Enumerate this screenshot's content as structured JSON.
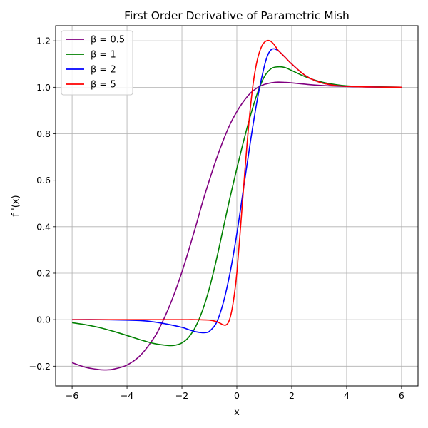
{
  "chart_data": {
    "type": "line",
    "title": "First Order Derivative of Parametric Mish",
    "xlabel": "x",
    "ylabel": "f '(x)",
    "xlim": [
      -6.6,
      6.6
    ],
    "ylim": [
      -0.285,
      1.265
    ],
    "xticks": [
      -6,
      -4,
      -2,
      0,
      2,
      4,
      6
    ],
    "yticks": [
      -0.2,
      0.0,
      0.2,
      0.4,
      0.6,
      0.8,
      1.0,
      1.2
    ],
    "xtick_labels": [
      "−6",
      "−4",
      "−2",
      "0",
      "2",
      "4",
      "6"
    ],
    "ytick_labels": [
      "−0.2",
      "0.0",
      "0.2",
      "0.4",
      "0.6",
      "0.8",
      "1.0",
      "1.2"
    ],
    "grid": true,
    "legend_position": "top-left",
    "series": [
      {
        "name": "β = 0.5",
        "color": "#800080",
        "x": [
          -6,
          -5.5,
          -5,
          -4.75,
          -4.5,
          -4,
          -3.5,
          -3,
          -2.75,
          -2.5,
          -2.25,
          -2,
          -1.75,
          -1.5,
          -1.25,
          -1,
          -0.75,
          -0.5,
          -0.25,
          0,
          0.25,
          0.5,
          0.75,
          1,
          1.25,
          1.5,
          1.75,
          2,
          2.5,
          3,
          4,
          5,
          6
        ],
        "y": [
          -0.185,
          -0.205,
          -0.215,
          -0.216,
          -0.213,
          -0.195,
          -0.152,
          -0.075,
          -0.02,
          0.045,
          0.12,
          0.205,
          0.3,
          0.4,
          0.505,
          0.6,
          0.69,
          0.77,
          0.84,
          0.895,
          0.94,
          0.975,
          0.998,
          1.012,
          1.019,
          1.022,
          1.021,
          1.019,
          1.013,
          1.008,
          1.003,
          1.001,
          1.0
        ]
      },
      {
        "name": "β = 1",
        "color": "#008000",
        "x": [
          -6,
          -5.5,
          -5,
          -4.5,
          -4,
          -3.5,
          -3,
          -2.5,
          -2.25,
          -2,
          -1.75,
          -1.5,
          -1.25,
          -1,
          -0.75,
          -0.5,
          -0.25,
          0,
          0.25,
          0.5,
          0.75,
          1,
          1.25,
          1.5,
          1.75,
          2,
          2.5,
          3,
          3.5,
          4,
          5,
          6
        ],
        "y": [
          -0.013,
          -0.022,
          -0.034,
          -0.05,
          -0.068,
          -0.087,
          -0.103,
          -0.111,
          -0.11,
          -0.1,
          -0.075,
          -0.03,
          0.04,
          0.135,
          0.255,
          0.39,
          0.525,
          0.65,
          0.77,
          0.88,
          0.975,
          1.045,
          1.08,
          1.088,
          1.085,
          1.072,
          1.045,
          1.025,
          1.013,
          1.006,
          1.002,
          1.0
        ]
      },
      {
        "name": "β = 2",
        "color": "#0000ff",
        "x": [
          -6,
          -5,
          -4,
          -3.5,
          -3,
          -2.5,
          -2,
          -1.75,
          -1.5,
          -1.25,
          -1.1,
          -1,
          -0.75,
          -0.5,
          -0.25,
          0,
          0.25,
          0.5,
          0.75,
          1,
          1.15,
          1.3,
          1.5,
          1.75,
          2,
          2.5,
          3,
          3.5,
          4,
          5,
          6
        ],
        "y": [
          0.0,
          0.0,
          -0.002,
          -0.004,
          -0.01,
          -0.02,
          -0.033,
          -0.043,
          -0.052,
          -0.056,
          -0.055,
          -0.05,
          -0.015,
          0.07,
          0.2,
          0.37,
          0.57,
          0.77,
          0.95,
          1.09,
          1.145,
          1.165,
          1.158,
          1.13,
          1.1,
          1.05,
          1.022,
          1.009,
          1.004,
          1.001,
          1.0
        ]
      },
      {
        "name": "β = 5",
        "color": "#ff0000",
        "x": [
          -6,
          -4,
          -3,
          -2,
          -1.5,
          -1,
          -0.75,
          -0.6,
          -0.5,
          -0.4,
          -0.3,
          -0.2,
          -0.1,
          0,
          0.15,
          0.3,
          0.45,
          0.6,
          0.75,
          0.9,
          1.05,
          1.2,
          1.35,
          1.5,
          1.75,
          2,
          2.5,
          3,
          3.5,
          4,
          5,
          6
        ],
        "y": [
          0.0,
          0.0,
          0.0,
          0.0,
          0.0,
          -0.002,
          -0.008,
          -0.016,
          -0.022,
          -0.023,
          -0.01,
          0.03,
          0.1,
          0.2,
          0.42,
          0.65,
          0.86,
          1.02,
          1.12,
          1.175,
          1.198,
          1.2,
          1.185,
          1.16,
          1.13,
          1.1,
          1.05,
          1.022,
          1.009,
          1.004,
          1.001,
          1.0
        ]
      }
    ]
  }
}
